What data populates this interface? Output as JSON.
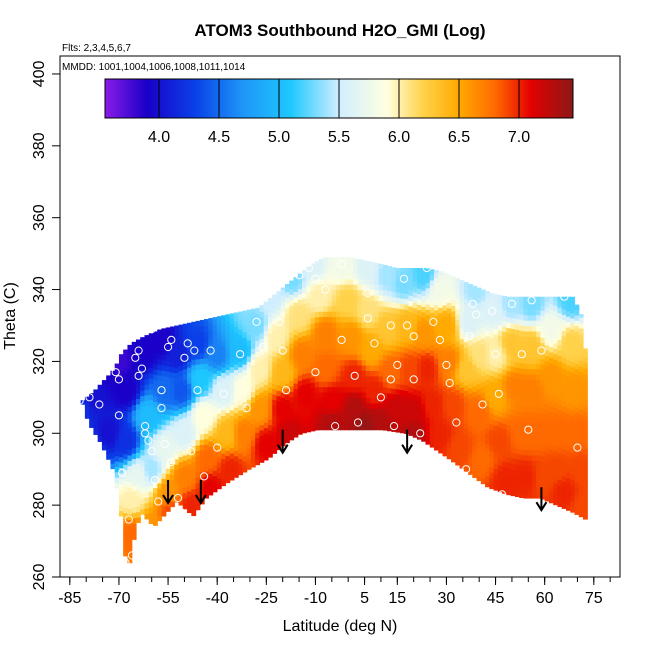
{
  "chart_data": {
    "type": "heatmap",
    "title": "ATOM3 Southbound H2O_GMI (Log)",
    "flights_label": "Flts: 2,3,4,5,6,7",
    "mmdd_label": "MMDD: 1001,1004,1006,1008,1011,1014",
    "xlabel": "Latitude (deg N)",
    "ylabel": "Theta (C)",
    "xlim": [
      -88,
      83
    ],
    "ylim": [
      260,
      405
    ],
    "x_ticks": [
      -85,
      -70,
      -55,
      -40,
      -25,
      -10,
      5,
      15,
      30,
      45,
      60,
      75
    ],
    "x_tick_labels": [
      "-85",
      "-70",
      "-55",
      "-40",
      "-25",
      "-10",
      "5",
      "15",
      "30",
      "45",
      "60",
      "75"
    ],
    "x_minor_step": 5,
    "y_ticks": [
      260,
      280,
      300,
      320,
      340,
      360,
      380,
      400
    ],
    "y_tick_labels": [
      "260",
      "280",
      "300",
      "320",
      "340",
      "360",
      "380",
      "400"
    ],
    "colorbar": {
      "range": [
        3.55,
        7.45
      ],
      "ticks": [
        4.0,
        4.5,
        5.0,
        5.5,
        6.0,
        6.5,
        7.0
      ],
      "tick_labels": [
        "4.0",
        "4.5",
        "5.0",
        "5.5",
        "6.0",
        "6.5",
        "7.0"
      ],
      "colors": [
        "#8a1be8",
        "#1a00c8",
        "#0a40e8",
        "#1e96f8",
        "#1ec8ff",
        "#d0eeff",
        "#ffffe0",
        "#ffd24a",
        "#ffaa00",
        "#ff6a00",
        "#e40000",
        "#8c1818"
      ],
      "stops": [
        3.55,
        3.9,
        4.3,
        4.7,
        5.1,
        5.5,
        5.9,
        6.2,
        6.5,
        6.8,
        7.1,
        7.45
      ]
    },
    "boundary": {
      "top": [
        [
          -82,
          309
        ],
        [
          -78,
          312
        ],
        [
          -75,
          315
        ],
        [
          -72,
          318
        ],
        [
          -70,
          322
        ],
        [
          -67,
          325
        ],
        [
          -63,
          327
        ],
        [
          -58,
          329
        ],
        [
          -53,
          330
        ],
        [
          -48,
          331
        ],
        [
          -43,
          332
        ],
        [
          -38,
          333
        ],
        [
          -33,
          334
        ],
        [
          -28,
          335
        ],
        [
          -24,
          338
        ],
        [
          -20,
          341
        ],
        [
          -16,
          344
        ],
        [
          -12,
          347
        ],
        [
          -8,
          349
        ],
        [
          -4,
          349
        ],
        [
          0,
          349
        ],
        [
          5,
          348
        ],
        [
          10,
          347
        ],
        [
          14,
          346
        ],
        [
          18,
          346
        ],
        [
          23,
          346
        ],
        [
          28,
          345
        ],
        [
          33,
          343
        ],
        [
          38,
          341
        ],
        [
          43,
          339
        ],
        [
          48,
          338
        ],
        [
          53,
          338
        ],
        [
          58,
          338
        ],
        [
          63,
          338
        ],
        [
          68,
          338
        ],
        [
          71,
          332
        ],
        [
          72,
          320
        ]
      ],
      "bottom": [
        [
          -82,
          309
        ],
        [
          -80,
          303
        ],
        [
          -76,
          297
        ],
        [
          -72,
          289
        ],
        [
          -70,
          277
        ],
        [
          -69,
          268
        ],
        [
          -68,
          261
        ],
        [
          -66,
          271
        ],
        [
          -64,
          278
        ],
        [
          -60,
          274
        ],
        [
          -56,
          278
        ],
        [
          -53,
          281
        ],
        [
          -48,
          277
        ],
        [
          -44,
          282
        ],
        [
          -38,
          286
        ],
        [
          -31,
          290
        ],
        [
          -25,
          293
        ],
        [
          -20,
          297
        ],
        [
          -15,
          300
        ],
        [
          -10,
          301
        ],
        [
          0,
          301
        ],
        [
          10,
          301
        ],
        [
          17,
          300
        ],
        [
          22,
          298
        ],
        [
          30,
          293
        ],
        [
          36,
          289
        ],
        [
          42,
          285
        ],
        [
          48,
          283
        ],
        [
          53,
          282
        ],
        [
          58,
          282
        ],
        [
          63,
          280
        ],
        [
          68,
          278
        ],
        [
          72,
          276
        ]
      ]
    },
    "samples": [
      [
        -82,
        308,
        4.2
      ],
      [
        -78,
        311,
        4.0
      ],
      [
        -78,
        295,
        4.3
      ],
      [
        -73,
        318,
        3.9
      ],
      [
        -73,
        300,
        4.0
      ],
      [
        -70,
        320,
        3.8
      ],
      [
        -68,
        312,
        3.9
      ],
      [
        -68,
        298,
        4.2
      ],
      [
        -66,
        282,
        6.0
      ],
      [
        -66,
        272,
        6.8
      ],
      [
        -64,
        288,
        5.7
      ],
      [
        -62,
        323,
        3.9
      ],
      [
        -61,
        305,
        5.0
      ],
      [
        -60,
        290,
        5.4
      ],
      [
        -60,
        274,
        6.6
      ],
      [
        -57,
        326,
        3.9
      ],
      [
        -56,
        312,
        4.5
      ],
      [
        -56,
        296,
        5.7
      ],
      [
        -55,
        284,
        6.6
      ],
      [
        -54,
        278,
        6.9
      ],
      [
        -52,
        322,
        4.1
      ],
      [
        -51,
        312,
        4.4
      ],
      [
        -50,
        300,
        5.6
      ],
      [
        -50,
        288,
        6.7
      ],
      [
        -48,
        280,
        7.0
      ],
      [
        -46,
        325,
        4.3
      ],
      [
        -45,
        315,
        5.1
      ],
      [
        -44,
        305,
        5.9
      ],
      [
        -43,
        293,
        6.8
      ],
      [
        -42,
        285,
        7.1
      ],
      [
        -40,
        322,
        4.6
      ],
      [
        -38,
        312,
        5.6
      ],
      [
        -37,
        300,
        6.4
      ],
      [
        -36,
        290,
        7.0
      ],
      [
        -33,
        323,
        5.0
      ],
      [
        -32,
        312,
        5.9
      ],
      [
        -32,
        300,
        6.7
      ],
      [
        -28,
        330,
        5.3
      ],
      [
        -27,
        318,
        6.0
      ],
      [
        -27,
        307,
        6.6
      ],
      [
        -25,
        297,
        7.1
      ],
      [
        -24,
        338,
        5.5
      ],
      [
        -22,
        327,
        6.0
      ],
      [
        -20,
        317,
        6.4
      ],
      [
        -20,
        307,
        7.1
      ],
      [
        -18,
        300,
        7.2
      ],
      [
        -17,
        343,
        5.3
      ],
      [
        -15,
        333,
        6.1
      ],
      [
        -14,
        322,
        6.7
      ],
      [
        -13,
        311,
        7.1
      ],
      [
        -11,
        347,
        5.6
      ],
      [
        -9,
        338,
        6.0
      ],
      [
        -7,
        328,
        6.7
      ],
      [
        -7,
        318,
        6.8
      ],
      [
        -5,
        309,
        7.1
      ],
      [
        -5,
        303,
        7.3
      ],
      [
        -2,
        347,
        5.8
      ],
      [
        0,
        337,
        6.2
      ],
      [
        1,
        327,
        6.6
      ],
      [
        2,
        316,
        7.0
      ],
      [
        2,
        307,
        7.3
      ],
      [
        5,
        302,
        7.4
      ],
      [
        6,
        346,
        5.6
      ],
      [
        6,
        334,
        6.1
      ],
      [
        7,
        323,
        6.5
      ],
      [
        8,
        312,
        7.0
      ],
      [
        10,
        303,
        7.3
      ],
      [
        12,
        344,
        5.4
      ],
      [
        12,
        329,
        6.3
      ],
      [
        13,
        317,
        6.8
      ],
      [
        15,
        307,
        7.2
      ],
      [
        17,
        342,
        5.3
      ],
      [
        18,
        330,
        6.4
      ],
      [
        19,
        318,
        6.9
      ],
      [
        20,
        306,
        7.2
      ],
      [
        20,
        300,
        7.3
      ],
      [
        23,
        344,
        5.2
      ],
      [
        23,
        328,
        6.6
      ],
      [
        24,
        318,
        7.0
      ],
      [
        26,
        308,
        7.0
      ],
      [
        28,
        300,
        7.0
      ],
      [
        28,
        340,
        5.8
      ],
      [
        30,
        330,
        6.5
      ],
      [
        31,
        320,
        6.7
      ],
      [
        32,
        308,
        6.9
      ],
      [
        34,
        296,
        6.9
      ],
      [
        36,
        318,
        6.3
      ],
      [
        37,
        331,
        5.6
      ],
      [
        39,
        340,
        5.4
      ],
      [
        40,
        322,
        6.1
      ],
      [
        40,
        306,
        6.8
      ],
      [
        41,
        293,
        6.8
      ],
      [
        44,
        334,
        5.6
      ],
      [
        45,
        322,
        6.0
      ],
      [
        45,
        310,
        6.5
      ],
      [
        46,
        298,
        6.9
      ],
      [
        48,
        287,
        7.0
      ],
      [
        50,
        336,
        5.4
      ],
      [
        50,
        325,
        6.3
      ],
      [
        51,
        313,
        6.7
      ],
      [
        53,
        300,
        6.8
      ],
      [
        54,
        288,
        7.0
      ],
      [
        56,
        336,
        5.3
      ],
      [
        56,
        324,
        6.3
      ],
      [
        56,
        312,
        6.7
      ],
      [
        58,
        300,
        6.8
      ],
      [
        60,
        288,
        6.9
      ],
      [
        62,
        329,
        5.8
      ],
      [
        62,
        316,
        6.6
      ],
      [
        64,
        300,
        6.8
      ],
      [
        64,
        290,
        6.9
      ],
      [
        66,
        284,
        7.0
      ],
      [
        68,
        337,
        5.2
      ],
      [
        68,
        325,
        6.2
      ],
      [
        69,
        312,
        6.6
      ],
      [
        70,
        300,
        6.8
      ],
      [
        71,
        290,
        6.9
      ],
      [
        72,
        280,
        6.9
      ]
    ],
    "observations": [
      [
        -82,
        309
      ],
      [
        -79,
        310
      ],
      [
        -76,
        308
      ],
      [
        -73,
        323
      ],
      [
        -71,
        317
      ],
      [
        -70,
        315
      ],
      [
        -70,
        305
      ],
      [
        -69,
        289
      ],
      [
        -68,
        264
      ],
      [
        -67,
        276
      ],
      [
        -66,
        266
      ],
      [
        -66,
        327
      ],
      [
        -65,
        321
      ],
      [
        -64,
        323
      ],
      [
        -64,
        316
      ],
      [
        -63,
        318
      ],
      [
        -62,
        302
      ],
      [
        -62,
        300
      ],
      [
        -61,
        298
      ],
      [
        -60,
        295
      ],
      [
        -60,
        329
      ],
      [
        -59,
        287
      ],
      [
        -58,
        281
      ],
      [
        -57,
        312
      ],
      [
        -57,
        307
      ],
      [
        -56,
        297
      ],
      [
        -55,
        324
      ],
      [
        -54,
        326
      ],
      [
        -54,
        292
      ],
      [
        -52,
        282
      ],
      [
        -51,
        278
      ],
      [
        -50,
        321
      ],
      [
        -49,
        325
      ],
      [
        -48,
        295
      ],
      [
        -47,
        323
      ],
      [
        -46,
        312
      ],
      [
        -44,
        288
      ],
      [
        -42,
        323
      ],
      [
        -40,
        296
      ],
      [
        -38,
        311
      ],
      [
        -36,
        285
      ],
      [
        -33,
        322
      ],
      [
        -31,
        307
      ],
      [
        -28,
        331
      ],
      [
        -26,
        324
      ],
      [
        -21,
        331
      ],
      [
        -20,
        323
      ],
      [
        -19,
        312
      ],
      [
        -15,
        344
      ],
      [
        -12,
        346
      ],
      [
        -10,
        343
      ],
      [
        -10,
        317
      ],
      [
        -7,
        340
      ],
      [
        -4,
        302
      ],
      [
        -2,
        347
      ],
      [
        -2,
        326
      ],
      [
        2,
        316
      ],
      [
        3,
        303
      ],
      [
        6,
        339
      ],
      [
        6,
        332
      ],
      [
        8,
        325
      ],
      [
        10,
        310
      ],
      [
        13,
        330
      ],
      [
        13,
        315
      ],
      [
        14,
        302
      ],
      [
        15,
        319
      ],
      [
        17,
        343
      ],
      [
        18,
        330
      ],
      [
        20,
        327
      ],
      [
        20,
        315
      ],
      [
        22,
        300
      ],
      [
        24,
        346
      ],
      [
        26,
        331
      ],
      [
        28,
        326
      ],
      [
        30,
        319
      ],
      [
        31,
        314
      ],
      [
        33,
        303
      ],
      [
        36,
        290
      ],
      [
        37,
        327
      ],
      [
        38,
        336
      ],
      [
        39,
        333
      ],
      [
        41,
        308
      ],
      [
        44,
        334
      ],
      [
        45,
        322
      ],
      [
        46,
        311
      ],
      [
        47,
        283
      ],
      [
        50,
        336
      ],
      [
        53,
        322
      ],
      [
        55,
        301
      ],
      [
        56,
        337
      ],
      [
        59,
        323
      ],
      [
        66,
        338
      ],
      [
        67,
        275
      ],
      [
        70,
        296
      ]
    ],
    "arrows": [
      [
        -55,
        287
      ],
      [
        -45,
        287
      ],
      [
        -20,
        301
      ],
      [
        18,
        301
      ],
      [
        59,
        285
      ]
    ]
  }
}
